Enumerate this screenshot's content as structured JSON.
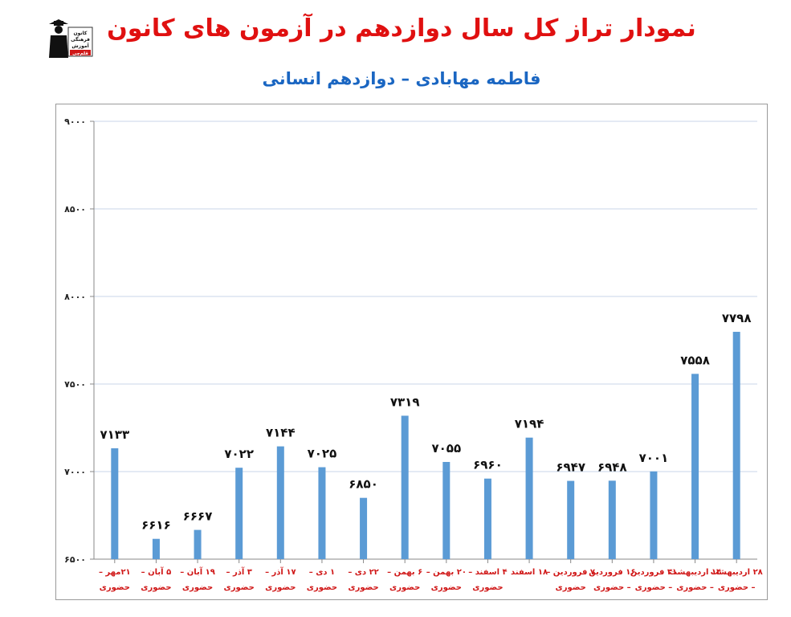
{
  "page": {
    "title": "نمودار تراز کل سال دوازدهم در آزمون های کانون",
    "subtitle": "فاطمه مهابادی – دوازدهم انسانی",
    "logo_text": [
      "کانون",
      "فرهنگی",
      "آموزش",
      "قلم‌چی"
    ]
  },
  "chart_data": {
    "type": "bar",
    "title": "نمودار تراز کل سال دوازدهم در آزمون های کانون",
    "subtitle": "فاطمه مهابادی – دوازدهم انسانی",
    "ylim": [
      6500,
      9000
    ],
    "yticks": [
      6500,
      7000,
      7500,
      8000,
      8500,
      9000
    ],
    "ytick_labels": [
      "۶۵۰۰",
      "۷۰۰۰",
      "۷۵۰۰",
      "۸۰۰۰",
      "۸۵۰۰",
      "۹۰۰۰"
    ],
    "grid": true,
    "bar_color": "#5b9bd5",
    "categories": [
      [
        "۲۱مهر –",
        "حضوری"
      ],
      [
        "۵ آبان –",
        "حضوری"
      ],
      [
        "۱۹ آبان –",
        "حضوری"
      ],
      [
        "۳ آذر –",
        "حضوری"
      ],
      [
        "۱۷ آذر –",
        "حضوری"
      ],
      [
        "۱ دی –",
        "حضوری"
      ],
      [
        "۲۲ دی –",
        "حضوری"
      ],
      [
        "۶ بهمن –",
        "حضوری"
      ],
      [
        "۲۰ بهمن –",
        "حضوری"
      ],
      [
        "۴ اسفند –",
        "حضوری"
      ],
      [
        "۱۸ اسفند",
        ""
      ],
      [
        "۷ فروردین –",
        "حضوری"
      ],
      [
        "۱۶ فروردین",
        "– حضوری"
      ],
      [
        "۳۱ فروردین",
        "– حضوری"
      ],
      [
        "۱۴ اردیبهشت",
        "– حضوری"
      ],
      [
        "۲۸ اردیبهشت",
        "– حضوری"
      ]
    ],
    "values": [
      7133,
      6616,
      6667,
      7022,
      7144,
      7025,
      6850,
      7319,
      7055,
      6960,
      7194,
      6947,
      6948,
      7001,
      7558,
      7798
    ],
    "value_labels": [
      "۷۱۳۳",
      "۶۶۱۶",
      "۶۶۶۷",
      "۷۰۲۲",
      "۷۱۴۴",
      "۷۰۲۵",
      "۶۸۵۰",
      "۷۳۱۹",
      "۷۰۵۵",
      "۶۹۶۰",
      "۷۱۹۴",
      "۶۹۴۷",
      "۶۹۴۸",
      "۷۰۰۱",
      "۷۵۵۸",
      "۷۷۹۸"
    ]
  }
}
